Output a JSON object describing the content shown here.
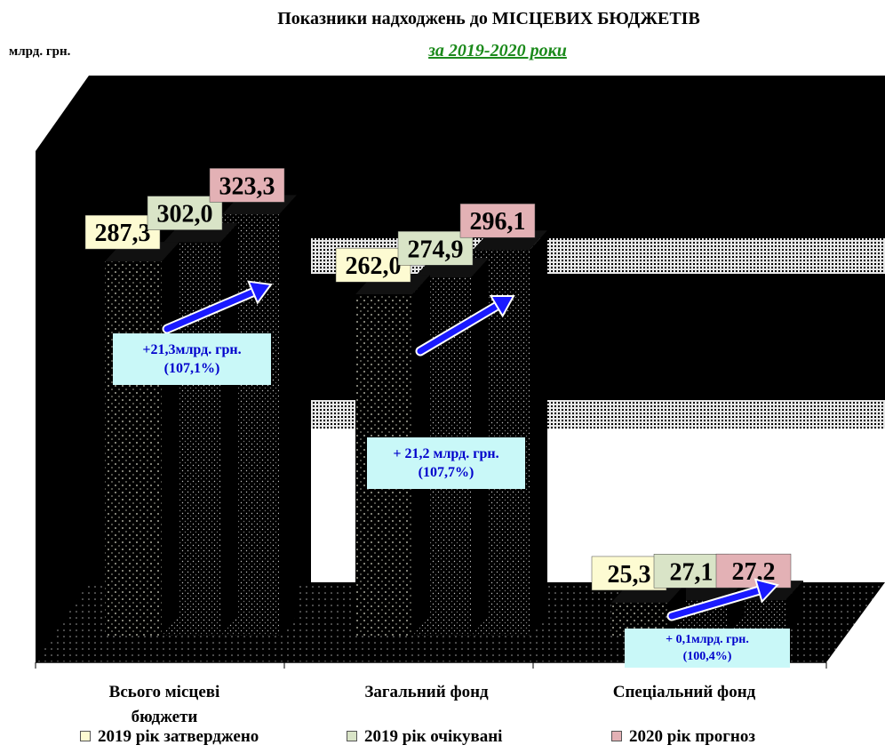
{
  "chart_data": {
    "type": "bar",
    "title": "Показники надходжень до МІСЦЕВИХ БЮДЖЕТІВ",
    "subtitle": "за 2019-2020  роки",
    "ylabel": "млрд.  грн.",
    "categories": [
      "Всього місцеві бюджети",
      "Загальний фонд",
      "Спеціальний фонд"
    ],
    "category_lines": [
      [
        "Всього місцеві",
        "бюджети"
      ],
      [
        "Загальний фонд"
      ],
      [
        "Спеціальний фонд"
      ]
    ],
    "series": [
      {
        "name": "2019 рік затверджено",
        "values": [
          287.3,
          262.0,
          25.3
        ],
        "labels": [
          "287,3",
          "262,0",
          "25,3"
        ],
        "color": "#fdfbd2"
      },
      {
        "name": "2019 рік очікувані",
        "values": [
          302.0,
          274.9,
          27.1
        ],
        "labels": [
          "302,0",
          "274,9",
          "27,1"
        ],
        "color": "#d9e4c7"
      },
      {
        "name": "2020 рік прогноз",
        "values": [
          323.3,
          296.1,
          27.2
        ],
        "labels": [
          "323,3",
          "296,1",
          "27,2"
        ],
        "color": "#e3b1b5"
      }
    ],
    "annotations": [
      {
        "line1": "+21,3млрд. грн.",
        "line2": "(107,1%)"
      },
      {
        "line1": "+ 21,2 млрд. грн.",
        "line2": "(107,7%)"
      },
      {
        "line1": "+ 0,1млрд. грн.",
        "line2": "(100,4%)"
      }
    ],
    "ylim": [
      0,
      330
    ],
    "grid": false,
    "legend_position": "bottom"
  }
}
